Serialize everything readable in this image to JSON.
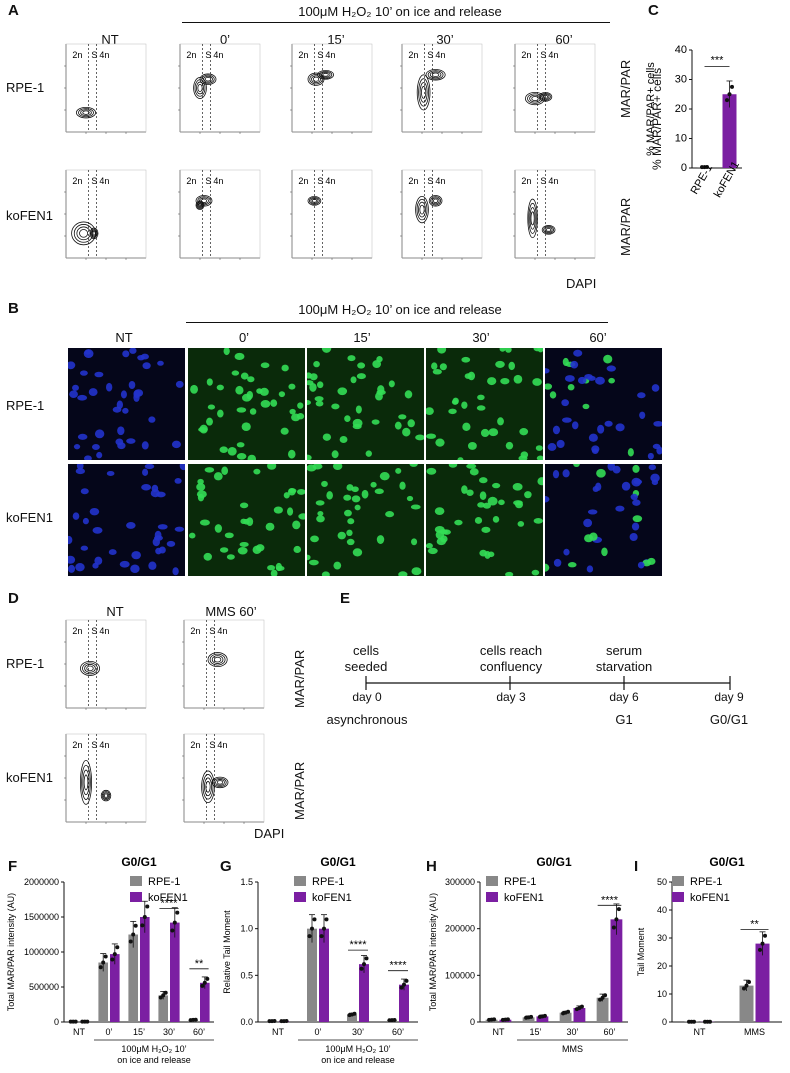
{
  "panel_labels": {
    "A": "A",
    "B": "B",
    "C": "C",
    "D": "D",
    "E": "E",
    "F": "F",
    "G": "G",
    "H": "H",
    "I": "I"
  },
  "panel_a": {
    "treatment": "100μM H₂O₂ 10’ on ice and release",
    "columns": [
      "NT",
      "0’",
      "15’",
      "30’",
      "60’"
    ],
    "rows": [
      "RPE-1",
      "koFEN1"
    ],
    "gate_labels": {
      "g2n": "2n",
      "gs": "S",
      "g4n": "4n"
    },
    "ylabel": "MAR/PAR",
    "xlabel": "DAPI"
  },
  "panel_b": {
    "treatment": "100μM H₂O₂ 10’ on ice and release",
    "columns": [
      "NT",
      "0’",
      "15’",
      "30’",
      "60’"
    ],
    "rows": [
      "RPE-1",
      "koFEN1"
    ]
  },
  "panel_c": {
    "ylabel": "% MAR/PAR+ cells",
    "sig": "***"
  },
  "panel_d": {
    "columns": [
      "NT",
      "MMS 60’"
    ],
    "rows": [
      "RPE-1",
      "koFEN1"
    ],
    "ylabel": "MAR/PAR",
    "xlabel": "DAPI",
    "gate_labels": {
      "g2n": "2n",
      "gs": "S",
      "g4n": "4n"
    }
  },
  "panel_e": {
    "steps": [
      {
        "label1": "cells",
        "label2": "seeded",
        "day": "day 0",
        "phase": "asynchronous"
      },
      {
        "label1": "cells reach",
        "label2": "confluency",
        "day": "day 3",
        "phase": ""
      },
      {
        "label1": "serum",
        "label2": "starvation",
        "day": "day 6",
        "phase": "G1"
      },
      {
        "label1": "",
        "label2": "",
        "day": "day 9",
        "phase": "G0/G1"
      }
    ]
  },
  "colors": {
    "rpe1": "#888888",
    "kofen1": "#7b1fa2",
    "green": "#33dd55",
    "blue": "#2233cc"
  },
  "chart_data": [
    {
      "id": "C",
      "type": "bar",
      "categories": [
        "RPE-1",
        "koFEN1"
      ],
      "values": [
        0.3,
        25
      ],
      "errors": [
        0.1,
        4.5
      ],
      "ylabel": "% MAR/PAR+ cells",
      "ylim": [
        0,
        40
      ],
      "yticks": [
        0,
        10,
        20,
        30,
        40
      ],
      "sig": "***"
    },
    {
      "id": "F",
      "type": "bar",
      "title": "G0/G1",
      "ylabel": "Total MAR/PAR intensity (AU)",
      "ylim": [
        0,
        2000000
      ],
      "yticks": [
        "0",
        "500000",
        "1000000",
        "1500000",
        "2000000"
      ],
      "categories": [
        "NT",
        "0’",
        "15’",
        "30’",
        "60’"
      ],
      "series": [
        {
          "name": "RPE-1",
          "values": [
            5000,
            850000,
            1250000,
            380000,
            30000
          ]
        },
        {
          "name": "koFEN1",
          "values": [
            5000,
            970000,
            1500000,
            1420000,
            560000
          ]
        }
      ],
      "sig": [
        "",
        "",
        "",
        "****",
        "**"
      ],
      "group_label": "100μM H₂O₂ 10’",
      "group_label2": "on ice and release"
    },
    {
      "id": "G",
      "type": "bar",
      "title": "G0/G1",
      "ylabel": "Relative Tail Moment",
      "ylim": [
        0,
        1.5
      ],
      "yticks": [
        "0.0",
        "0.5",
        "1.0",
        "1.5"
      ],
      "categories": [
        "NT",
        "0’",
        "30’",
        "60’"
      ],
      "series": [
        {
          "name": "RPE-1",
          "values": [
            0.01,
            1.0,
            0.08,
            0.02
          ]
        },
        {
          "name": "koFEN1",
          "values": [
            0.01,
            1.0,
            0.62,
            0.4
          ]
        }
      ],
      "sig": [
        "",
        "",
        "****",
        "****"
      ],
      "group_label": "100μM H₂O₂ 10’",
      "group_label2": "on ice and release"
    },
    {
      "id": "H",
      "type": "bar",
      "title": "G0/G1",
      "ylabel": "Total MAR/PAR intensity (AU)",
      "ylim": [
        0,
        300000
      ],
      "yticks": [
        "0",
        "100000",
        "200000",
        "300000"
      ],
      "categories": [
        "NT",
        "15’",
        "30’",
        "60’"
      ],
      "series": [
        {
          "name": "RPE-1",
          "values": [
            5000,
            10000,
            20000,
            52000
          ]
        },
        {
          "name": "koFEN1",
          "values": [
            5000,
            12000,
            30000,
            220000
          ]
        }
      ],
      "sig": [
        "",
        "",
        "",
        "****"
      ],
      "group_label": "MMS"
    },
    {
      "id": "I",
      "type": "bar",
      "title": "G0/G1",
      "ylabel": "Tail Moment",
      "ylim": [
        0,
        50
      ],
      "yticks": [
        "0",
        "10",
        "20",
        "30",
        "40",
        "50"
      ],
      "categories": [
        "NT",
        "MMS"
      ],
      "series": [
        {
          "name": "RPE-1",
          "values": [
            0.1,
            13
          ]
        },
        {
          "name": "koFEN1",
          "values": [
            0.1,
            28
          ]
        }
      ],
      "sig": [
        "",
        "**"
      ]
    }
  ]
}
